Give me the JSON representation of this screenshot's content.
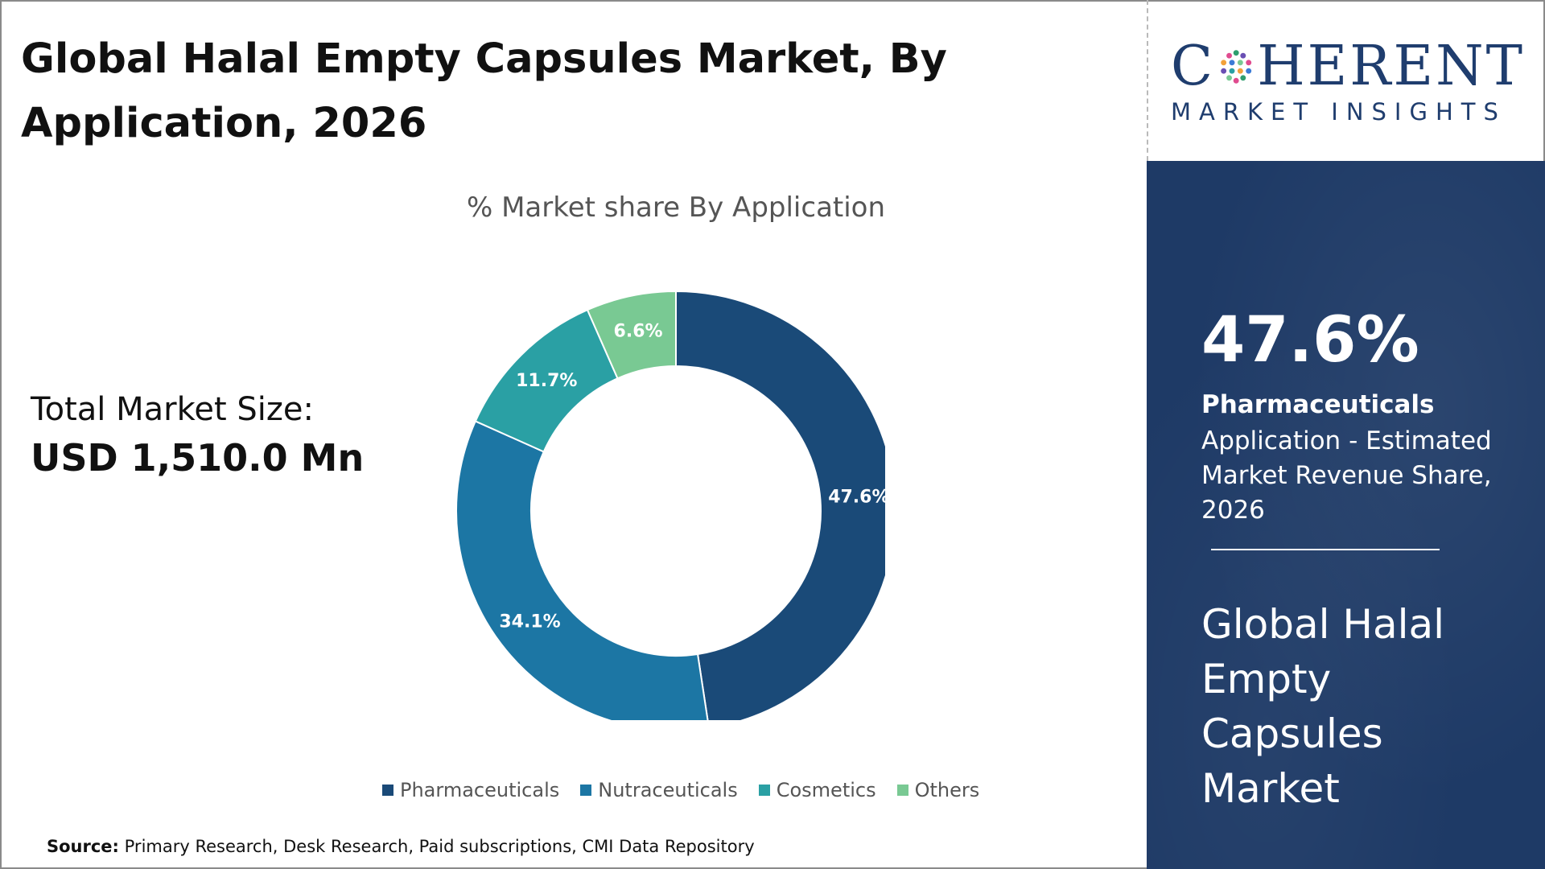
{
  "header": {
    "title": "Global Halal Empty Capsules Market, By Application, 2026"
  },
  "logo": {
    "main_left": "C",
    "main_right": "HERENT",
    "sub": "MARKET INSIGHTS"
  },
  "total": {
    "label": "Total Market Size:",
    "value": "USD 1,510.0 Mn"
  },
  "highlight": {
    "percent": "47.6%",
    "label": "Pharmaceuticals",
    "description": "Application - Estimated Market Revenue Share, 2026",
    "market_name": "Global Halal Empty Capsules Market"
  },
  "source": {
    "prefix": "Source:",
    "text": "Primary Research, Desk Research, Paid subscriptions, CMI Data Repository"
  },
  "colors": {
    "Pharmaceuticals": "#1a4a78",
    "Nutraceuticals": "#1c76a4",
    "Cosmetics": "#2aa0a4",
    "Others": "#79c993",
    "panel": "#1e3a66"
  },
  "chart_data": {
    "type": "pie",
    "subtitle": "% Market share By Application",
    "categories": [
      "Pharmaceuticals",
      "Nutraceuticals",
      "Cosmetics",
      "Others"
    ],
    "values": [
      47.6,
      34.1,
      11.7,
      6.6
    ],
    "labels": [
      "47.6%",
      "34.1%",
      "11.7%",
      "6.6%"
    ],
    "donut": true,
    "legend_position": "bottom"
  }
}
